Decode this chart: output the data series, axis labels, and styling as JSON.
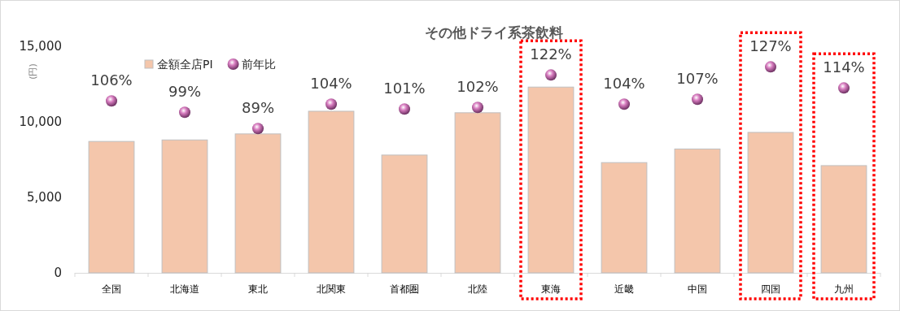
{
  "chart_data": {
    "type": "bar",
    "title": "その他ドライ系茶飲料",
    "ylabel": "(円)",
    "categories": [
      "全国",
      "北海道",
      "東北",
      "北関東",
      "首都圏",
      "北陸",
      "東海",
      "近畿",
      "中国",
      "四国",
      "九州"
    ],
    "series": [
      {
        "name": "金額全店PI",
        "color": "#f4c6ab",
        "values": [
          8700,
          8800,
          9200,
          10700,
          7800,
          10600,
          12300,
          7300,
          8200,
          9300,
          7100
        ]
      },
      {
        "name": "前年比",
        "type": "scatter",
        "axis": "y2",
        "color": "#d77cbf",
        "marker": "circle",
        "values": [
          106,
          99,
          89,
          104,
          101,
          102,
          122,
          104,
          107,
          127,
          114
        ],
        "value_labels": [
          "106%",
          "99%",
          "89%",
          "104%",
          "101%",
          "102%",
          "122%",
          "104%",
          "107%",
          "127%",
          "114%"
        ]
      }
    ],
    "ylim": [
      0,
      15000
    ],
    "yticks": [
      {
        "value": 0,
        "label": "0"
      },
      {
        "value": 5000,
        "label": "5,000"
      },
      {
        "value": 10000,
        "label": "10,000"
      },
      {
        "value": 15000,
        "label": "15,000"
      }
    ],
    "tick_labels": "y",
    "grid": false,
    "legend": "top left"
  }
}
